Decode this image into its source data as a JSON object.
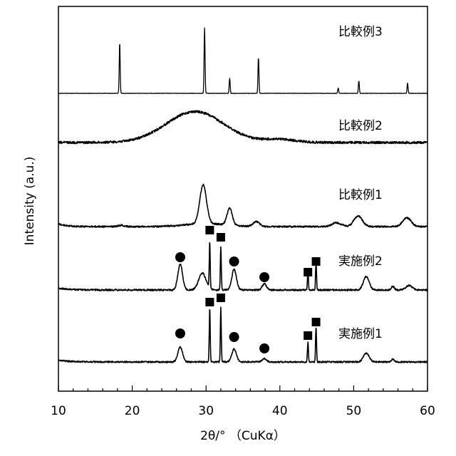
{
  "chart_data": {
    "type": "line",
    "xlabel": "2θ/° （CuKα）",
    "ylabel": "Intensity (a.u.)",
    "xlim": [
      10,
      60
    ],
    "x_ticks": [
      "10",
      "20",
      "30",
      "40",
      "50",
      "60"
    ],
    "grid": false,
    "legend": "none",
    "series": [
      {
        "name": "比較例3",
        "peaks": [
          {
            "x": 18.3,
            "h": 0.78
          },
          {
            "x": 29.8,
            "h": 1.0
          },
          {
            "x": 33.2,
            "h": 0.23
          },
          {
            "x": 37.1,
            "h": 0.55
          },
          {
            "x": 47.9,
            "h": 0.08
          },
          {
            "x": 50.7,
            "h": 0.19
          },
          {
            "x": 57.3,
            "h": 0.16
          }
        ],
        "humps": []
      },
      {
        "name": "比較例2",
        "peaks": [],
        "humps": [
          {
            "x": 28.5,
            "h": 0.62,
            "w": 5.5
          },
          {
            "x": 40.0,
            "h": 0.06,
            "w": 3.0
          }
        ]
      },
      {
        "name": "比較例1",
        "peaks": [],
        "humps": [
          {
            "x": 29.6,
            "h": 0.62,
            "w": 0.65
          },
          {
            "x": 33.2,
            "h": 0.27,
            "w": 0.5
          },
          {
            "x": 36.8,
            "h": 0.08,
            "w": 0.6
          },
          {
            "x": 47.7,
            "h": 0.06,
            "w": 0.9
          },
          {
            "x": 50.6,
            "h": 0.17,
            "w": 0.8
          },
          {
            "x": 57.2,
            "h": 0.14,
            "w": 0.8
          },
          {
            "x": 18.5,
            "h": 0.02,
            "w": 0.6
          }
        ]
      },
      {
        "name": "実施例2",
        "peaks": [
          {
            "x": 30.5,
            "h": 0.52
          },
          {
            "x": 32.0,
            "h": 0.48
          },
          {
            "x": 43.8,
            "h": 0.22
          },
          {
            "x": 44.9,
            "h": 0.31
          }
        ],
        "humps": [
          {
            "x": 26.5,
            "h": 0.29,
            "w": 0.45
          },
          {
            "x": 29.5,
            "h": 0.19,
            "w": 0.7
          },
          {
            "x": 33.8,
            "h": 0.23,
            "w": 0.45
          },
          {
            "x": 37.9,
            "h": 0.07,
            "w": 0.4
          },
          {
            "x": 51.7,
            "h": 0.15,
            "w": 0.55
          },
          {
            "x": 55.3,
            "h": 0.04,
            "w": 0.3
          },
          {
            "x": 57.5,
            "h": 0.05,
            "w": 0.6
          }
        ]
      },
      {
        "name": "実施例1",
        "peaks": [
          {
            "x": 30.5,
            "h": 0.8
          },
          {
            "x": 32.0,
            "h": 0.8
          },
          {
            "x": 43.8,
            "h": 0.3
          },
          {
            "x": 44.9,
            "h": 0.52
          }
        ],
        "humps": [
          {
            "x": 26.5,
            "h": 0.22,
            "w": 0.45
          },
          {
            "x": 33.8,
            "h": 0.19,
            "w": 0.45
          },
          {
            "x": 37.9,
            "h": 0.05,
            "w": 0.4
          },
          {
            "x": 51.7,
            "h": 0.13,
            "w": 0.55
          },
          {
            "x": 55.3,
            "h": 0.04,
            "w": 0.3
          }
        ]
      }
    ],
    "markers": [
      {
        "series": "実施例2",
        "shape": "square",
        "x": 30.5
      },
      {
        "series": "実施例2",
        "shape": "square",
        "x": 32.0
      },
      {
        "series": "実施例2",
        "shape": "square",
        "x": 43.8
      },
      {
        "series": "実施例2",
        "shape": "square",
        "x": 44.9
      },
      {
        "series": "実施例2",
        "shape": "circle",
        "x": 26.5
      },
      {
        "series": "実施例2",
        "shape": "circle",
        "x": 33.8
      },
      {
        "series": "実施例2",
        "shape": "circle",
        "x": 37.9
      },
      {
        "series": "実施例1",
        "shape": "square",
        "x": 30.5
      },
      {
        "series": "実施例1",
        "shape": "square",
        "x": 32.0
      },
      {
        "series": "実施例1",
        "shape": "square",
        "x": 43.8
      },
      {
        "series": "実施例1",
        "shape": "square",
        "x": 44.9
      },
      {
        "series": "実施例1",
        "shape": "circle",
        "x": 26.5
      },
      {
        "series": "実施例1",
        "shape": "circle",
        "x": 33.8
      },
      {
        "series": "実施例1",
        "shape": "circle",
        "x": 37.9
      }
    ]
  }
}
